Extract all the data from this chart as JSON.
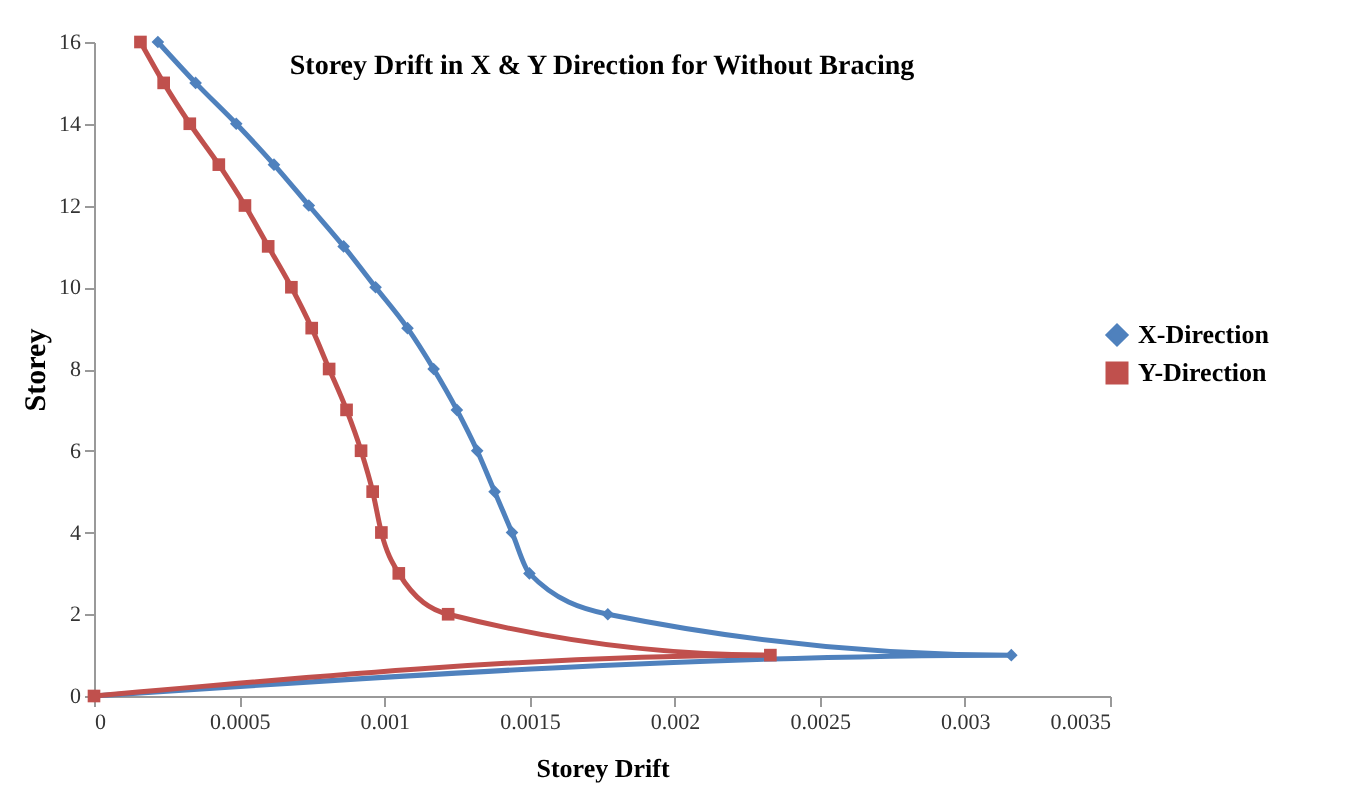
{
  "chart_data": {
    "type": "line",
    "title": "Storey Drift in X & Y Direction for Without Bracing",
    "xlabel": "Storey Drift",
    "ylabel": "Storey",
    "xlim": [
      0,
      0.0035
    ],
    "xticks": [
      0,
      0.0005,
      0.001,
      0.0015,
      0.002,
      0.0025,
      0.003,
      0.0035
    ],
    "ylim": [
      0,
      16
    ],
    "yticks": [
      0,
      2,
      4,
      6,
      8,
      10,
      12,
      14,
      16
    ],
    "grid": false,
    "legend": "right",
    "line_style": "solid",
    "series": [
      {
        "name": "X-Direction",
        "color": "#4f81bd",
        "marker": "diamond",
        "x": [
          0,
          0.00316,
          0.00177,
          0.0015,
          0.00144,
          0.00138,
          0.00132,
          0.00125,
          0.00117,
          0.00108,
          0.00097,
          0.00086,
          0.00074,
          0.00062,
          0.00049,
          0.00035,
          0.00022
        ],
        "values": [
          0,
          1,
          2,
          3,
          4,
          5,
          6,
          7,
          8,
          9,
          10,
          11,
          12,
          13,
          14,
          15,
          16
        ]
      },
      {
        "name": "Y-Direction",
        "color": "#c0504d",
        "marker": "square",
        "x": [
          0,
          0.00233,
          0.00122,
          0.00105,
          0.00099,
          0.00096,
          0.00092,
          0.00087,
          0.00081,
          0.00075,
          0.00068,
          0.0006,
          0.00052,
          0.00043,
          0.00033,
          0.00024,
          0.00016
        ],
        "values": [
          0,
          1,
          2,
          3,
          4,
          5,
          6,
          7,
          8,
          9,
          10,
          11,
          12,
          13,
          14,
          15,
          16
        ]
      }
    ]
  }
}
